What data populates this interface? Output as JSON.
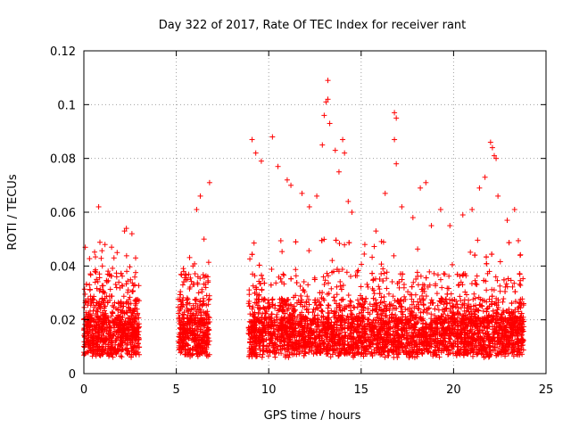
{
  "chart_data": {
    "type": "scatter",
    "title": "Day 322 of 2017, Rate Of TEC Index for receiver rant",
    "xlabel": "GPS time / hours",
    "ylabel": "ROTI / TECUs",
    "xlim": [
      0,
      25
    ],
    "ylim": [
      0,
      0.12
    ],
    "xticks": [
      0,
      5,
      10,
      15,
      20,
      25
    ],
    "xtick_labels": [
      "0",
      "5",
      "10",
      "15",
      "20",
      "25"
    ],
    "yticks": [
      0,
      0.02,
      0.04,
      0.06,
      0.08,
      0.1,
      0.12
    ],
    "ytick_labels": [
      "0",
      "0.02",
      "0.04",
      "0.06",
      "0.08",
      "0.1",
      "0.12"
    ],
    "grid": true,
    "marker": "+",
    "color": "#ff0000",
    "segments": [
      {
        "x_start": 0.0,
        "x_end": 3.0
      },
      {
        "x_start": 5.1,
        "x_end": 6.8
      },
      {
        "x_start": 8.9,
        "x_end": 23.8
      }
    ],
    "points": [
      [
        0.8,
        0.062
      ],
      [
        1.5,
        0.047
      ],
      [
        2.2,
        0.053
      ],
      [
        2.3,
        0.054
      ],
      [
        2.6,
        0.052
      ],
      [
        2.8,
        0.043
      ],
      [
        0.3,
        0.033
      ],
      [
        1.0,
        0.04
      ],
      [
        1.8,
        0.045
      ],
      [
        0.6,
        0.038
      ],
      [
        5.4,
        0.038
      ],
      [
        5.9,
        0.04
      ],
      [
        6.1,
        0.061
      ],
      [
        6.3,
        0.066
      ],
      [
        6.8,
        0.071
      ],
      [
        6.5,
        0.05
      ],
      [
        5.6,
        0.035
      ],
      [
        9.1,
        0.087
      ],
      [
        9.3,
        0.082
      ],
      [
        9.6,
        0.079
      ],
      [
        10.2,
        0.088
      ],
      [
        10.5,
        0.077
      ],
      [
        11.0,
        0.072
      ],
      [
        11.2,
        0.07
      ],
      [
        11.8,
        0.067
      ],
      [
        12.2,
        0.062
      ],
      [
        12.6,
        0.066
      ],
      [
        12.9,
        0.085
      ],
      [
        13.0,
        0.096
      ],
      [
        13.1,
        0.101
      ],
      [
        13.2,
        0.102
      ],
      [
        13.2,
        0.109
      ],
      [
        13.3,
        0.093
      ],
      [
        13.6,
        0.083
      ],
      [
        13.8,
        0.075
      ],
      [
        14.0,
        0.087
      ],
      [
        14.1,
        0.082
      ],
      [
        14.3,
        0.064
      ],
      [
        14.5,
        0.06
      ],
      [
        15.2,
        0.048
      ],
      [
        15.8,
        0.053
      ],
      [
        16.3,
        0.067
      ],
      [
        16.8,
        0.097
      ],
      [
        16.9,
        0.095
      ],
      [
        16.8,
        0.087
      ],
      [
        16.9,
        0.078
      ],
      [
        17.2,
        0.062
      ],
      [
        17.8,
        0.058
      ],
      [
        18.2,
        0.069
      ],
      [
        18.5,
        0.071
      ],
      [
        18.8,
        0.055
      ],
      [
        19.3,
        0.061
      ],
      [
        19.8,
        0.055
      ],
      [
        20.5,
        0.059
      ],
      [
        21.0,
        0.061
      ],
      [
        21.4,
        0.069
      ],
      [
        21.7,
        0.073
      ],
      [
        22.0,
        0.086
      ],
      [
        22.1,
        0.084
      ],
      [
        22.2,
        0.081
      ],
      [
        22.3,
        0.08
      ],
      [
        22.4,
        0.066
      ],
      [
        22.9,
        0.057
      ],
      [
        23.3,
        0.061
      ],
      [
        23.6,
        0.044
      ]
    ]
  }
}
